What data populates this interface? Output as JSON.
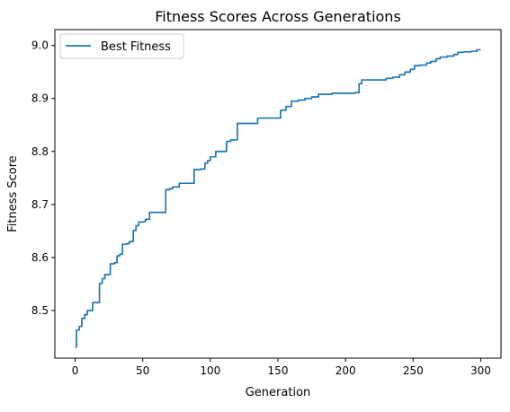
{
  "chart_data": {
    "type": "line",
    "title": "Fitness Scores Across Generations",
    "xlabel": "Generation",
    "ylabel": "Fitness Score",
    "xlim": [
      -15,
      315
    ],
    "ylim": [
      8.41,
      9.03
    ],
    "xticks": [
      0,
      50,
      100,
      150,
      200,
      250,
      300
    ],
    "xtick_labels": [
      "0",
      "50",
      "100",
      "150",
      "200",
      "250",
      "300"
    ],
    "yticks": [
      8.5,
      8.6,
      8.7,
      8.8,
      8.9,
      9.0
    ],
    "ytick_labels": [
      "8.5",
      "8.6",
      "8.7",
      "8.8",
      "8.9",
      "9.0"
    ],
    "grid": false,
    "legend_position": "upper-left",
    "series": [
      {
        "name": "Best Fitness",
        "color": "#1f77b4",
        "step": true,
        "points": [
          [
            0,
            8.431
          ],
          [
            1,
            8.463
          ],
          [
            3,
            8.47
          ],
          [
            5,
            8.485
          ],
          [
            7,
            8.492
          ],
          [
            9,
            8.5
          ],
          [
            13,
            8.515
          ],
          [
            17,
            8.515
          ],
          [
            18,
            8.551
          ],
          [
            20,
            8.56
          ],
          [
            22,
            8.568
          ],
          [
            25,
            8.568
          ],
          [
            26,
            8.588
          ],
          [
            29,
            8.59
          ],
          [
            31,
            8.603
          ],
          [
            33,
            8.606
          ],
          [
            35,
            8.625
          ],
          [
            38,
            8.626
          ],
          [
            40,
            8.63
          ],
          [
            43,
            8.651
          ],
          [
            45,
            8.66
          ],
          [
            47,
            8.667
          ],
          [
            51,
            8.668
          ],
          [
            52,
            8.672
          ],
          [
            55,
            8.685
          ],
          [
            60,
            8.685
          ],
          [
            65,
            8.685
          ],
          [
            67,
            8.728
          ],
          [
            70,
            8.73
          ],
          [
            72,
            8.733
          ],
          [
            77,
            8.74
          ],
          [
            85,
            8.74
          ],
          [
            88,
            8.766
          ],
          [
            93,
            8.767
          ],
          [
            96,
            8.778
          ],
          [
            98,
            8.783
          ],
          [
            100,
            8.79
          ],
          [
            104,
            8.8
          ],
          [
            108,
            8.8
          ],
          [
            112,
            8.819
          ],
          [
            115,
            8.822
          ],
          [
            117,
            8.822
          ],
          [
            120,
            8.853
          ],
          [
            125,
            8.853
          ],
          [
            130,
            8.853
          ],
          [
            135,
            8.863
          ],
          [
            140,
            8.863
          ],
          [
            145,
            8.863
          ],
          [
            152,
            8.878
          ],
          [
            156,
            8.885
          ],
          [
            160,
            8.895
          ],
          [
            165,
            8.897
          ],
          [
            170,
            8.9
          ],
          [
            175,
            8.903
          ],
          [
            180,
            8.908
          ],
          [
            185,
            8.908
          ],
          [
            190,
            8.91
          ],
          [
            195,
            8.91
          ],
          [
            200,
            8.91
          ],
          [
            207,
            8.911
          ],
          [
            210,
            8.928
          ],
          [
            212,
            8.935
          ],
          [
            215,
            8.935
          ],
          [
            220,
            8.935
          ],
          [
            225,
            8.935
          ],
          [
            230,
            8.938
          ],
          [
            235,
            8.94
          ],
          [
            240,
            8.945
          ],
          [
            244,
            8.95
          ],
          [
            248,
            8.955
          ],
          [
            251,
            8.962
          ],
          [
            255,
            8.963
          ],
          [
            260,
            8.967
          ],
          [
            263,
            8.97
          ],
          [
            267,
            8.975
          ],
          [
            270,
            8.978
          ],
          [
            275,
            8.98
          ],
          [
            280,
            8.983
          ],
          [
            283,
            8.987
          ],
          [
            287,
            8.988
          ],
          [
            293,
            8.989
          ],
          [
            297,
            8.992
          ],
          [
            300,
            8.992
          ]
        ]
      }
    ]
  }
}
